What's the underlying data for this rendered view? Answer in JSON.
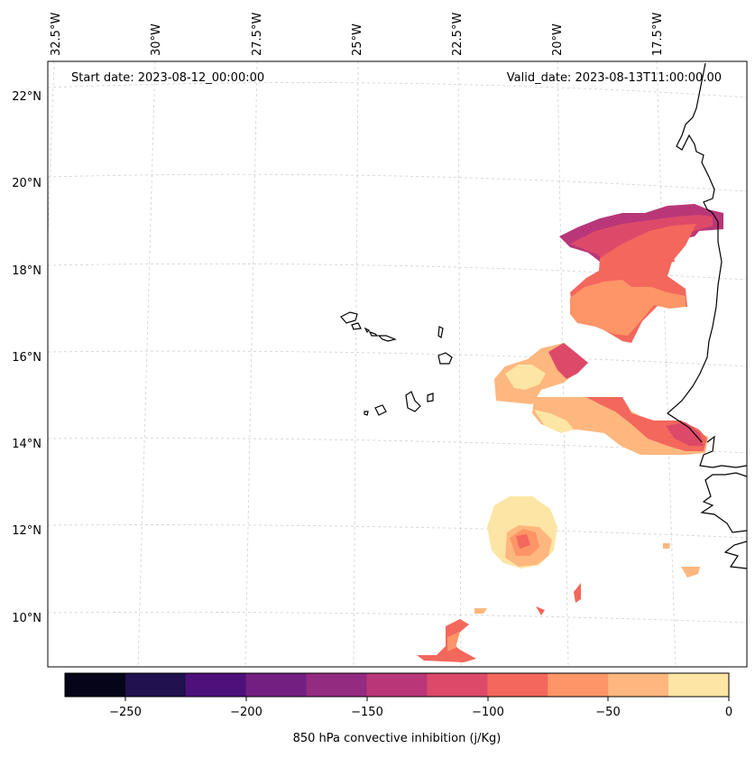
{
  "map": {
    "start_date_label": "Start date: 2023-08-12_00:00:00",
    "valid_date_label": "Valid_date: 2023-08-13T11:00:00.00",
    "lon_labels": [
      "32.5°W",
      "30°W",
      "27.5°W",
      "25°W",
      "22.5°W",
      "20°W",
      "17.5°W"
    ],
    "lat_labels": [
      "22°N",
      "20°N",
      "18°N",
      "16°N",
      "14°N",
      "12°N",
      "10°N"
    ]
  },
  "colorbar": {
    "label": "850 hPa convective inhibition (j/Kg)",
    "tick_labels": [
      "−250",
      "−200",
      "−150",
      "−100",
      "−50",
      "0"
    ],
    "levels": [
      -275,
      -250,
      -225,
      -200,
      -175,
      -150,
      -125,
      -100,
      -75,
      -50,
      -25,
      0
    ],
    "colors": [
      "#050418",
      "#21114e",
      "#4e117b",
      "#731f81",
      "#932b80",
      "#b93778",
      "#dd4a69",
      "#f3675c",
      "#fd9567",
      "#feb77e",
      "#fde6a5"
    ]
  },
  "colors": {
    "coastline": "#000000",
    "gridline": "#d0d0d0",
    "background": "#ffffff"
  }
}
